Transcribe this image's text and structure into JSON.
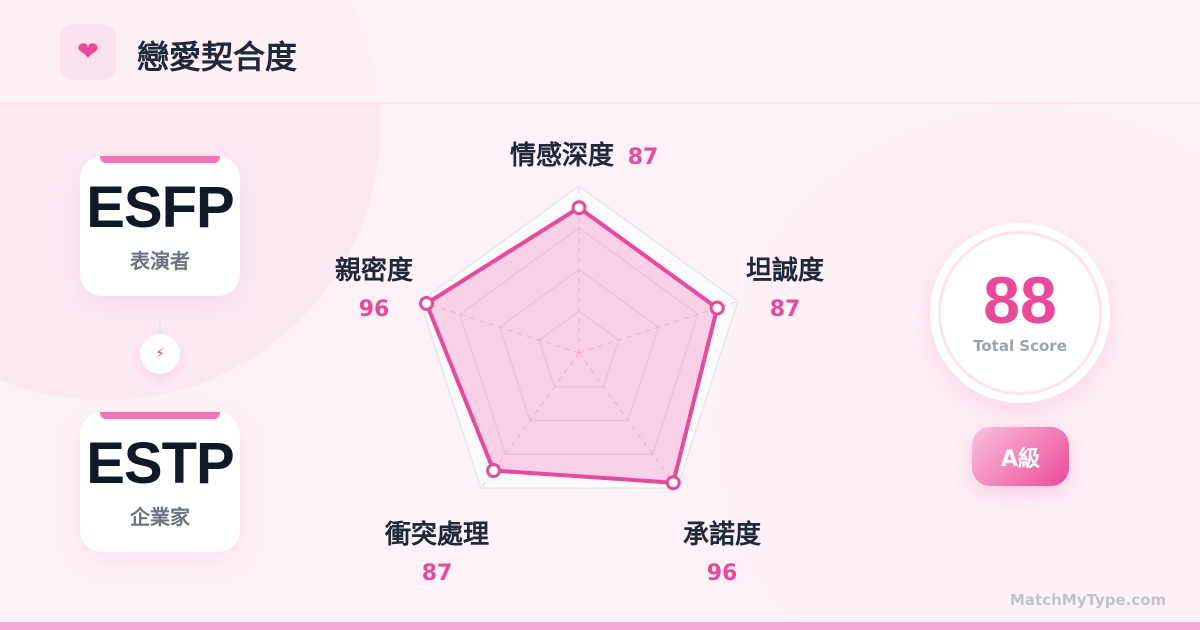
{
  "header": {
    "title": "戀愛契合度",
    "icon": "heart-icon"
  },
  "types": [
    {
      "code": "ESFP",
      "name": "表演者"
    },
    {
      "code": "ESTP",
      "name": "企業家"
    }
  ],
  "connector_icon": "lightning-icon",
  "score": {
    "value": "88",
    "label": "Total Score",
    "grade": "A級"
  },
  "brand": "MatchMyType.com",
  "colors": {
    "accent": "#ec4899",
    "fill": "#f9a8d4",
    "text": "#1f2937"
  },
  "chart_data": {
    "type": "radar",
    "categories": [
      "情感深度",
      "坦誠度",
      "承諾度",
      "衝突處理",
      "親密度"
    ],
    "values": [
      87,
      87,
      96,
      87,
      96
    ],
    "range": [
      0,
      100
    ],
    "grid": true
  }
}
